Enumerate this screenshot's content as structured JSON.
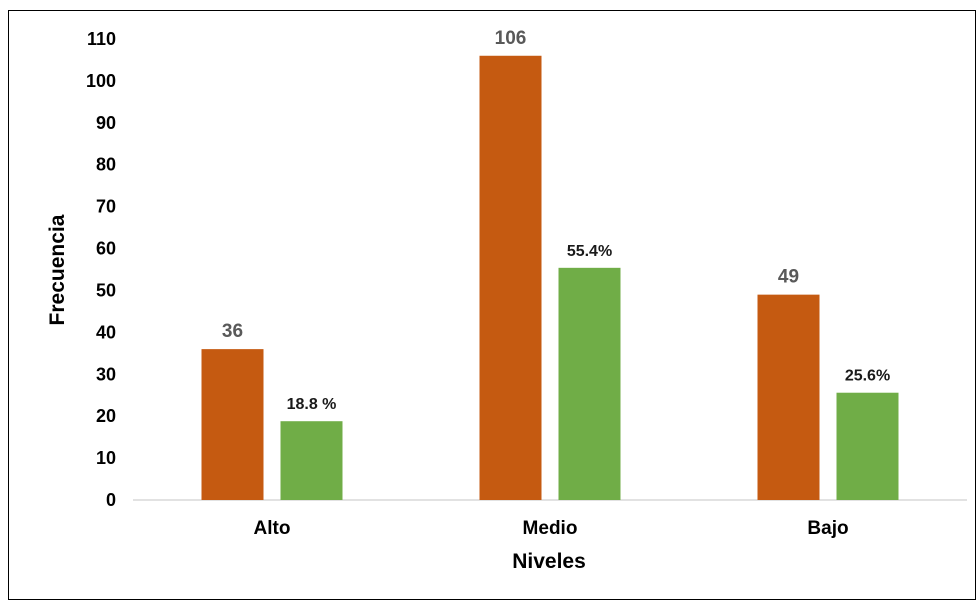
{
  "chart_data": {
    "type": "bar",
    "categories": [
      "Alto",
      "Medio",
      "Bajo"
    ],
    "series": [
      {
        "values": [
          36,
          106,
          49
        ],
        "labels": [
          "36",
          "106",
          "49"
        ],
        "color": "#c55a11"
      },
      {
        "values": [
          18.8,
          55.4,
          25.6
        ],
        "labels": [
          "18.8 %",
          "55.4%",
          "25.6%"
        ],
        "color": "#70ad47"
      }
    ],
    "xlabel": "Niveles",
    "ylabel": "Frecuencia",
    "ylim": [
      0,
      110
    ],
    "yticks": [
      0,
      10,
      20,
      30,
      40,
      50,
      60,
      70,
      80,
      90,
      100,
      110
    ],
    "grid": false,
    "legend": "none"
  }
}
